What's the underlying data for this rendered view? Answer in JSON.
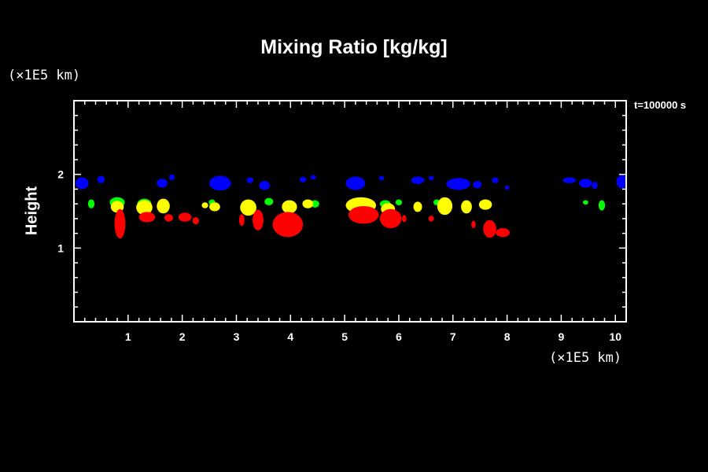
{
  "chart_data": {
    "type": "scatter",
    "title": "Mixing Ratio [kg/kg]",
    "ylabel": "Height",
    "y_unit": "(×1E5 km)",
    "x_unit": "(×1E5 km)",
    "time_label": "t=100000 s",
    "xlim": [
      0,
      10.2
    ],
    "ylim": [
      0,
      3
    ],
    "x_ticks": [
      "1",
      "2",
      "3",
      "4",
      "5",
      "6",
      "7",
      "8",
      "9",
      "10"
    ],
    "y_ticks": [
      "1",
      "2"
    ],
    "grid": false,
    "series": [
      {
        "color": "#0000ff",
        "patches": [
          {
            "x": 0.15,
            "y": 1.88,
            "rx": 0.12,
            "ry": 0.08
          },
          {
            "x": 0.5,
            "y": 1.93,
            "rx": 0.07,
            "ry": 0.05
          },
          {
            "x": 1.63,
            "y": 1.88,
            "rx": 0.1,
            "ry": 0.06
          },
          {
            "x": 1.81,
            "y": 1.96,
            "rx": 0.05,
            "ry": 0.04
          },
          {
            "x": 2.7,
            "y": 1.88,
            "rx": 0.2,
            "ry": 0.1
          },
          {
            "x": 3.25,
            "y": 1.92,
            "rx": 0.06,
            "ry": 0.04
          },
          {
            "x": 3.52,
            "y": 1.85,
            "rx": 0.1,
            "ry": 0.06
          },
          {
            "x": 4.23,
            "y": 1.93,
            "rx": 0.06,
            "ry": 0.04
          },
          {
            "x": 4.42,
            "y": 1.96,
            "rx": 0.05,
            "ry": 0.03
          },
          {
            "x": 5.2,
            "y": 1.88,
            "rx": 0.18,
            "ry": 0.09
          },
          {
            "x": 5.68,
            "y": 1.95,
            "rx": 0.05,
            "ry": 0.03
          },
          {
            "x": 6.35,
            "y": 1.92,
            "rx": 0.12,
            "ry": 0.05
          },
          {
            "x": 6.6,
            "y": 1.95,
            "rx": 0.05,
            "ry": 0.03
          },
          {
            "x": 7.1,
            "y": 1.87,
            "rx": 0.22,
            "ry": 0.08
          },
          {
            "x": 7.45,
            "y": 1.86,
            "rx": 0.08,
            "ry": 0.05
          },
          {
            "x": 7.78,
            "y": 1.92,
            "rx": 0.06,
            "ry": 0.04
          },
          {
            "x": 8.0,
            "y": 1.82,
            "rx": 0.04,
            "ry": 0.03
          },
          {
            "x": 9.15,
            "y": 1.92,
            "rx": 0.12,
            "ry": 0.04
          },
          {
            "x": 9.45,
            "y": 1.88,
            "rx": 0.12,
            "ry": 0.06
          },
          {
            "x": 9.62,
            "y": 1.85,
            "rx": 0.05,
            "ry": 0.05
          },
          {
            "x": 10.12,
            "y": 1.9,
            "rx": 0.1,
            "ry": 0.09
          }
        ]
      },
      {
        "color": "#00ff00",
        "patches": [
          {
            "x": 0.32,
            "y": 1.6,
            "rx": 0.06,
            "ry": 0.06
          },
          {
            "x": 0.8,
            "y": 1.62,
            "rx": 0.14,
            "ry": 0.07
          },
          {
            "x": 1.3,
            "y": 1.6,
            "rx": 0.13,
            "ry": 0.07
          },
          {
            "x": 2.55,
            "y": 1.62,
            "rx": 0.06,
            "ry": 0.04
          },
          {
            "x": 3.6,
            "y": 1.63,
            "rx": 0.08,
            "ry": 0.05
          },
          {
            "x": 4.45,
            "y": 1.6,
            "rx": 0.08,
            "ry": 0.05
          },
          {
            "x": 5.75,
            "y": 1.6,
            "rx": 0.1,
            "ry": 0.05
          },
          {
            "x": 6.0,
            "y": 1.62,
            "rx": 0.06,
            "ry": 0.04
          },
          {
            "x": 6.7,
            "y": 1.62,
            "rx": 0.06,
            "ry": 0.04
          },
          {
            "x": 9.45,
            "y": 1.62,
            "rx": 0.05,
            "ry": 0.03
          },
          {
            "x": 9.75,
            "y": 1.58,
            "rx": 0.06,
            "ry": 0.07
          }
        ]
      },
      {
        "color": "#ffff00",
        "patches": [
          {
            "x": 0.8,
            "y": 1.56,
            "rx": 0.12,
            "ry": 0.08
          },
          {
            "x": 1.3,
            "y": 1.55,
            "rx": 0.15,
            "ry": 0.1
          },
          {
            "x": 1.65,
            "y": 1.57,
            "rx": 0.12,
            "ry": 0.1
          },
          {
            "x": 2.42,
            "y": 1.58,
            "rx": 0.06,
            "ry": 0.04
          },
          {
            "x": 2.6,
            "y": 1.56,
            "rx": 0.1,
            "ry": 0.06
          },
          {
            "x": 3.22,
            "y": 1.55,
            "rx": 0.15,
            "ry": 0.11
          },
          {
            "x": 3.98,
            "y": 1.56,
            "rx": 0.14,
            "ry": 0.09
          },
          {
            "x": 4.32,
            "y": 1.6,
            "rx": 0.1,
            "ry": 0.06
          },
          {
            "x": 5.3,
            "y": 1.58,
            "rx": 0.28,
            "ry": 0.11
          },
          {
            "x": 5.8,
            "y": 1.53,
            "rx": 0.13,
            "ry": 0.08
          },
          {
            "x": 6.35,
            "y": 1.56,
            "rx": 0.08,
            "ry": 0.07
          },
          {
            "x": 6.85,
            "y": 1.57,
            "rx": 0.14,
            "ry": 0.12
          },
          {
            "x": 7.25,
            "y": 1.56,
            "rx": 0.1,
            "ry": 0.09
          },
          {
            "x": 7.6,
            "y": 1.59,
            "rx": 0.12,
            "ry": 0.07
          }
        ]
      },
      {
        "color": "#ff0000",
        "patches": [
          {
            "x": 0.85,
            "y": 1.33,
            "rx": 0.1,
            "ry": 0.2
          },
          {
            "x": 1.35,
            "y": 1.42,
            "rx": 0.15,
            "ry": 0.07
          },
          {
            "x": 1.75,
            "y": 1.41,
            "rx": 0.08,
            "ry": 0.05
          },
          {
            "x": 2.05,
            "y": 1.42,
            "rx": 0.12,
            "ry": 0.06
          },
          {
            "x": 2.25,
            "y": 1.37,
            "rx": 0.06,
            "ry": 0.05
          },
          {
            "x": 3.1,
            "y": 1.38,
            "rx": 0.05,
            "ry": 0.08
          },
          {
            "x": 3.4,
            "y": 1.38,
            "rx": 0.1,
            "ry": 0.14
          },
          {
            "x": 3.95,
            "y": 1.32,
            "rx": 0.28,
            "ry": 0.17
          },
          {
            "x": 5.35,
            "y": 1.45,
            "rx": 0.28,
            "ry": 0.12
          },
          {
            "x": 5.85,
            "y": 1.4,
            "rx": 0.2,
            "ry": 0.13
          },
          {
            "x": 6.1,
            "y": 1.4,
            "rx": 0.04,
            "ry": 0.05
          },
          {
            "x": 6.6,
            "y": 1.4,
            "rx": 0.05,
            "ry": 0.04
          },
          {
            "x": 7.38,
            "y": 1.32,
            "rx": 0.04,
            "ry": 0.05
          },
          {
            "x": 7.68,
            "y": 1.26,
            "rx": 0.12,
            "ry": 0.12
          },
          {
            "x": 7.92,
            "y": 1.21,
            "rx": 0.13,
            "ry": 0.06
          }
        ]
      }
    ]
  }
}
